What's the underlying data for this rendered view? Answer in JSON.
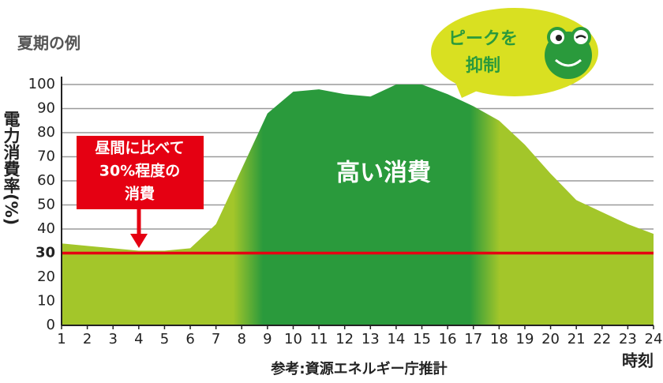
{
  "chart_data": {
    "type": "area",
    "title": "夏期の例",
    "y_label": "電力消費率(%)",
    "x_label": "時刻",
    "source": "参考:資源エネルギー庁推計",
    "x": [
      1,
      2,
      3,
      4,
      5,
      6,
      7,
      8,
      9,
      10,
      11,
      12,
      13,
      14,
      15,
      16,
      17,
      18,
      19,
      20,
      21,
      22,
      23,
      24
    ],
    "values": [
      34,
      33,
      32,
      31,
      31,
      32,
      42,
      65,
      88,
      97,
      98,
      96,
      95,
      100,
      100,
      96,
      91,
      85,
      75,
      63,
      52,
      47,
      42,
      38
    ],
    "color": "#a3c62a",
    "highlight_color": "#2a9a3c",
    "xlim": [
      1,
      24
    ],
    "xticks": [
      1,
      2,
      3,
      4,
      5,
      6,
      7,
      8,
      9,
      10,
      11,
      12,
      13,
      14,
      15,
      16,
      17,
      18,
      19,
      20,
      21,
      22,
      23,
      24
    ],
    "ylim": [
      0,
      100
    ],
    "yticks": [
      0,
      10,
      20,
      30,
      40,
      50,
      60,
      70,
      80,
      90,
      100
    ],
    "grid": true,
    "reference_line": {
      "value": 30,
      "color": "#e50012"
    },
    "low_note": [
      "昼間に比べて",
      "30%程度の",
      "消費"
    ],
    "peak_label": "高い消費",
    "bubble": [
      "ピークを",
      "抑制"
    ]
  }
}
